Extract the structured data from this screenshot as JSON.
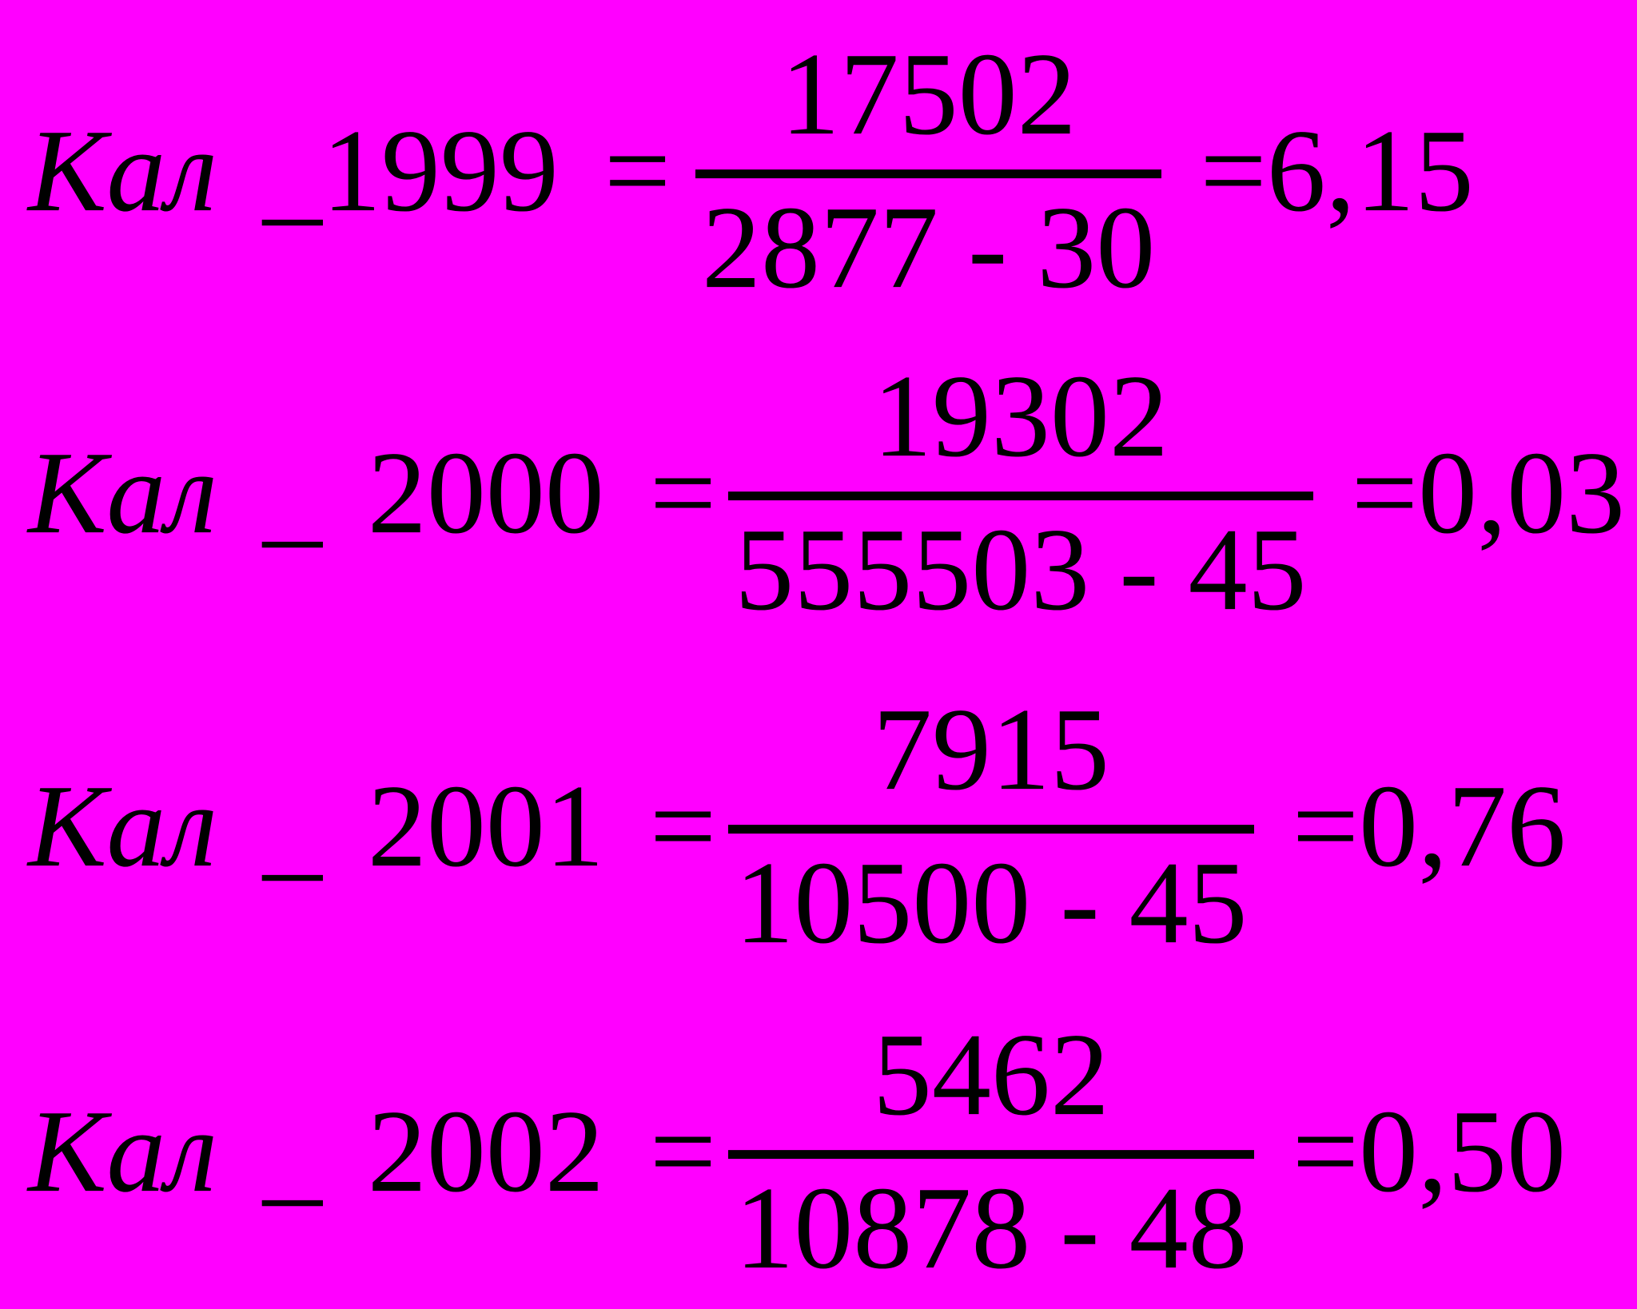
{
  "page": {
    "background_color": "#FF00FF",
    "text_color": "#000000"
  },
  "formulas": [
    {
      "name": "Кал",
      "year_part": " _1999 ",
      "equals": "=",
      "numerator": "17502",
      "denominator": "2877 - 30",
      "result": "=6,15"
    },
    {
      "name": "Кал",
      "year_part": " _ 2000 ",
      "equals": "=",
      "numerator": "19302",
      "denominator": "555503 - 45",
      "result": "=0,03"
    },
    {
      "name": "Кал",
      "year_part": " _ 2001 ",
      "equals": "=",
      "numerator": "7915",
      "denominator": "10500 - 45",
      "result": "=0,76"
    },
    {
      "name": "Кал",
      "year_part": " _ 2002 ",
      "equals": "=",
      "numerator": "5462",
      "denominator": "10878 - 48",
      "result": "=0,50"
    }
  ]
}
